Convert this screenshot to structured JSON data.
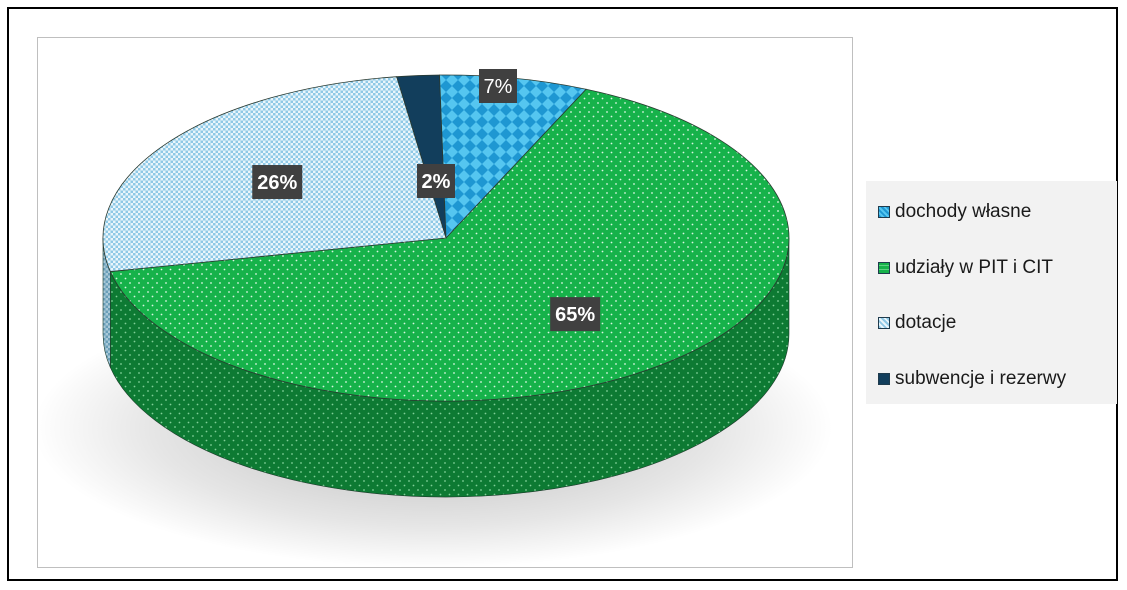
{
  "chart_data": {
    "type": "pie",
    "title": "",
    "slices": [
      {
        "label": "dochody własne",
        "value": 7,
        "value_label": "7%",
        "color": "#2aa7e0",
        "pattern": "diamonds"
      },
      {
        "label": "udziały w PIT i CIT",
        "value": 65,
        "value_label": "65%",
        "color": "#16b24a",
        "pattern": "dots"
      },
      {
        "label": "dotacje",
        "value": 26,
        "value_label": "26%",
        "color": "#b9dff0",
        "pattern": "grid"
      },
      {
        "label": "subwencje i rezerwy",
        "value": 2,
        "value_label": "2%",
        "color": "#123e5c",
        "pattern": "solid"
      }
    ],
    "legend_position": "right",
    "style": "3d"
  },
  "legend": {
    "items": [
      {
        "label": "dochody własne",
        "color": "#2aa7e0"
      },
      {
        "label": "udziały w PIT i CIT",
        "color": "#16b24a"
      },
      {
        "label": "dotacje",
        "color": "#b9dff0"
      },
      {
        "label": "subwencje i rezerwy",
        "color": "#123e5c"
      }
    ]
  }
}
